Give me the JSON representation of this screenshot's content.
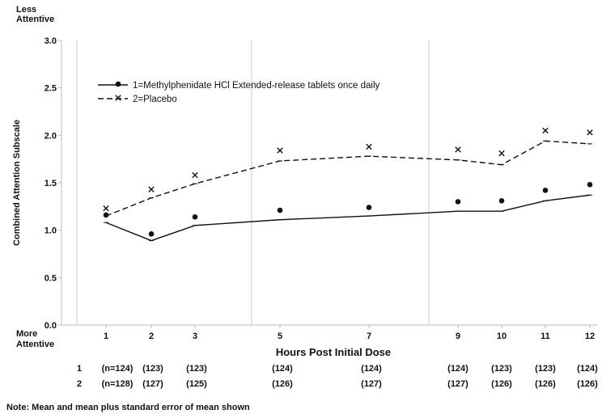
{
  "chart_data": {
    "type": "line",
    "title": "",
    "xlabel": "Hours Post Initial Dose",
    "ylabel": "Combined Attention Subscale",
    "ylim": [
      0,
      3
    ],
    "yticks": [
      "0.0",
      "0.5",
      "1.0",
      "1.5",
      "2.0",
      "2.5",
      "3.0"
    ],
    "y_top_note": [
      "Less",
      "Attentive"
    ],
    "y_bottom_note": [
      "More",
      "Attentive"
    ],
    "x": [
      1,
      2,
      3,
      5,
      7,
      9,
      10,
      11,
      12
    ],
    "x_tick_labels": [
      "1",
      "2",
      "3",
      "5",
      "7",
      "9",
      "10",
      "11",
      "12"
    ],
    "grid": "vertical lines between dosing periods",
    "legend_position": "top-left",
    "series": [
      {
        "name": "1=Methylphenidate HCl Extended-release tablets once daily",
        "marker": "dot",
        "line_style": "solid",
        "mean": [
          1.08,
          0.89,
          1.05,
          1.11,
          1.15,
          1.2,
          1.2,
          1.31,
          1.37
        ],
        "mean_plus_se": [
          1.16,
          0.96,
          1.14,
          1.21,
          1.24,
          1.3,
          1.31,
          1.42,
          1.48
        ]
      },
      {
        "name": "2=Placebo",
        "marker": "x",
        "line_style": "dashed",
        "mean": [
          1.15,
          1.34,
          1.49,
          1.73,
          1.78,
          1.74,
          1.69,
          1.94,
          1.91
        ],
        "mean_plus_se": [
          1.23,
          1.43,
          1.58,
          1.84,
          1.88,
          1.85,
          1.81,
          2.05,
          2.03
        ]
      }
    ],
    "sample_sizes": {
      "rows": [
        {
          "label": "1",
          "values": [
            "(n=124)",
            "(123)",
            "(123)",
            "(124)",
            "(124)",
            "(124)",
            "(123)",
            "(123)",
            "(124)"
          ]
        },
        {
          "label": "2",
          "values": [
            "(n=128)",
            "(127)",
            "(125)",
            "(126)",
            "(127)",
            "(127)",
            "(126)",
            "(126)",
            "(126)"
          ]
        }
      ]
    },
    "note": "Note:  Mean and mean plus standard error of mean shown"
  }
}
